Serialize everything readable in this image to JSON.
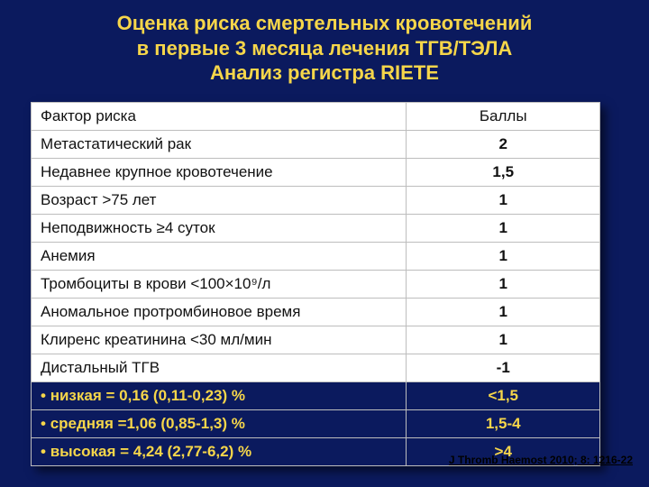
{
  "title": {
    "line1": "Оценка риска смертельных кровотечений",
    "line2": "в первые 3 месяца лечения ТГВ/ТЭЛА",
    "line3": "Анализ регистра RIETE"
  },
  "header": {
    "factor": "Фактор риска",
    "score": "Баллы"
  },
  "rows": [
    {
      "factor": "Метастатический рак",
      "score": "2"
    },
    {
      "factor": "Недавнее крупное кровотечение",
      "score": "1,5"
    },
    {
      "factor": "Возраст >75 лет",
      "score": "1"
    },
    {
      "factor": "Неподвижность ≥4 суток",
      "score": "1"
    },
    {
      "factor": "Анемия",
      "score": "1"
    },
    {
      "factor": "Тромбоциты в крови <100×10⁹/л",
      "score": "1"
    },
    {
      "factor": "Аномальное протромбиновое время",
      "score": "1"
    },
    {
      "factor": "Клиренс креатинина <30 мл/мин",
      "score": "1"
    },
    {
      "factor": "Дистальный ТГВ",
      "score": "-1"
    }
  ],
  "summary": [
    {
      "label": "низкая = 0,16 (0,11-0,23) %",
      "range": "<1,5"
    },
    {
      "label": "средняя =1,06 (0,85-1,3) %",
      "range": "1,5-4"
    },
    {
      "label": "высокая = 4,24 (2,77-6,2) %",
      "range": ">4"
    }
  ],
  "citation": "J Thromb Haemost 2010; 8: 1216-22",
  "colors": {
    "slide_bg": "#0b1a5e",
    "title_color": "#f6d64a",
    "table_bg": "#ffffff",
    "grid_color": "#bdbdbd",
    "text_color": "#111111",
    "summary_bg": "#0b1a5e",
    "summary_text": "#f6d64a"
  },
  "typography": {
    "title_fontsize": 22,
    "cell_fontsize": 17,
    "citation_fontsize": 12,
    "font_family": "Arial"
  },
  "layout": {
    "slide_width": 720,
    "slide_height": 540,
    "col_factor_width_pct": 66,
    "col_score_width_pct": 34
  }
}
